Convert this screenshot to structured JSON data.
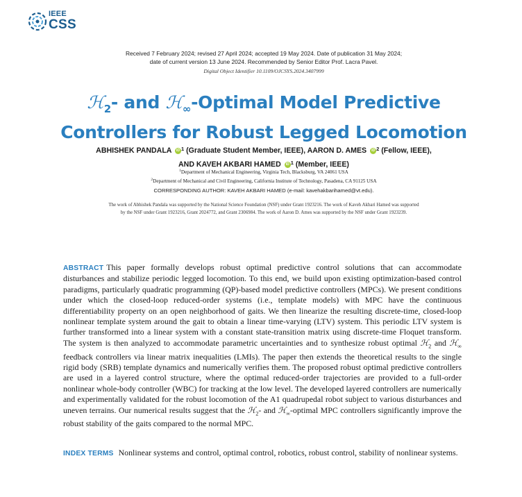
{
  "logo": {
    "org": "IEEE",
    "society": "CSS",
    "icon": "ieee-css-swirl-icon"
  },
  "received": {
    "line1": "Received 7 February 2024; revised 27 April 2024; accepted 19 May 2024. Date of publication 31 May 2024;",
    "line2": "date of current version 13 June 2024. Recommended by Senior Editor Prof. Lacra Pavel."
  },
  "doi": "Digital Object Identifier 10.1109/OJCSYS.2024.3407999",
  "title": {
    "h2": "ℋ",
    "h2_sub": "2",
    "mid": "- and ",
    "hinf": "ℋ",
    "hinf_sub": "∞",
    "line1_rest": "-Optimal Model Predictive",
    "line2": "Controllers for Robust Legged Locomotion"
  },
  "authors": {
    "a1": "ABHISHEK PANDALA",
    "a1_sup": "1",
    "a1_role": "(Graduate Student Member, IEEE), AARON D. AMES",
    "a2_sup": "2",
    "a2_role": "(Fellow, IEEE),",
    "a3": "AND KAVEH AKBARI HAMED",
    "a3_sup": "1",
    "a3_role": "(Member, IEEE)",
    "orcid": "iD"
  },
  "affiliations": {
    "line1_sup": "1",
    "line1": "Department of Mechanical Engineering, Virginia Tech, Blacksburg, VA 24061 USA",
    "line2_sup": "2",
    "line2": "Department of Mechanical and Civil Engineering, California Institute of Technology, Pasadena, CA 91125 USA"
  },
  "corresponding": "CORRESPONDING AUTHOR: KAVEH AKBARI HAMED (e-mail: kavehakbarihamed@vt.edu).",
  "funding": {
    "line1": "The work of Abhishek Pandala was supported by the National Science Foundation (NSF) under Grant 1923216. The work of Kaveh Akbari Hamed was supported",
    "line2": "by the NSF under Grant 1923216, Grant 2024772, and Grant 2306984. The work of Aaron D. Ames was supported by the NSF under Grant 1923239."
  },
  "abstract": {
    "label": "ABSTRACT",
    "p1": "This paper formally develops robust optimal predictive control solutions that can accommodate disturbances and stabilize periodic legged locomotion. To this end, we build upon existing optimization-based control paradigms, particularly quadratic programming (QP)-based model predictive controllers (MPCs). We present conditions under which the closed-loop reduced-order systems (i.e., template models) with MPC have the continuous differentiability property on an open neighborhood of gaits. We then linearize the resulting discrete-time, closed-loop nonlinear template system around the gait to obtain a linear time-varying (LTV) system. This periodic LTV system is further transformed into a linear system with a constant state-transition matrix using discrete-time Floquet transform. The system is then analyzed to accommodate parametric uncertainties and to synthesize robust optimal ",
    "p1_h2": "ℋ",
    "p1_h2_sub": "2",
    "p1_and": " and ",
    "p1_hinf": "ℋ",
    "p1_hinf_sub": "∞",
    "p2": " feedback controllers via linear matrix inequalities (LMIs). The paper then extends the theoretical results to the single rigid body (SRB) template dynamics and numerically verifies them. The proposed robust optimal predictive controllers are used in a layered control structure, where the optimal reduced-order trajectories are provided to a full-order nonlinear whole-body controller (WBC) for tracking at the low level. The developed layered controllers are numerically and experimentally validated for the robust locomotion of the A1 quadrupedal robot subject to various disturbances and uneven terrains. Our numerical results suggest that the ",
    "p2_h2": "ℋ",
    "p2_h2_sub": "2",
    "p2_and": "- and ",
    "p2_hinf": "ℋ",
    "p2_hinf_sub": "∞",
    "p3": "-optimal MPC controllers significantly improve the robust stability of the gaits compared to the normal MPC."
  },
  "index_terms": {
    "label": "INDEX TERMS",
    "text": "Nonlinear systems and control, optimal control, robotics, robust control, stability of nonlinear systems."
  }
}
